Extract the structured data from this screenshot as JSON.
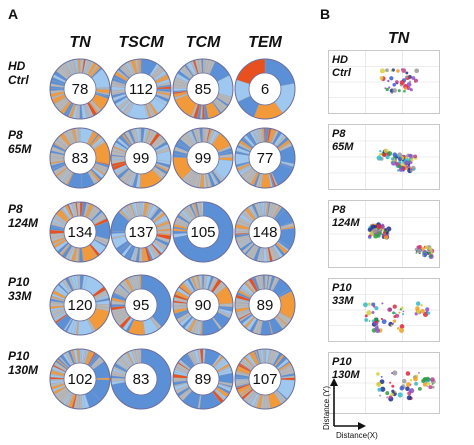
{
  "panel_a": {
    "letter": "A",
    "columns": [
      "TN",
      "TSCM",
      "TCM",
      "TEM"
    ],
    "rows": [
      {
        "label_line1": "HD",
        "label_line2": "Ctrl",
        "values": [
          "78",
          "112",
          "85",
          "6"
        ]
      },
      {
        "label_line1": "P8",
        "label_line2": "65M",
        "values": [
          "83",
          "99",
          "99",
          "77"
        ]
      },
      {
        "label_line1": "P8",
        "label_line2": "124M",
        "values": [
          "134",
          "137",
          "105",
          "148"
        ]
      },
      {
        "label_line1": "P10",
        "label_line2": "33M",
        "values": [
          "120",
          "95",
          "90",
          "89"
        ]
      },
      {
        "label_line1": "P10",
        "label_line2": "130M",
        "values": [
          "102",
          "83",
          "89",
          "107"
        ]
      }
    ]
  },
  "panel_b": {
    "letter": "B",
    "title": "TN",
    "plots": [
      {
        "label_line1": "HD",
        "label_line2": "Ctrl"
      },
      {
        "label_line1": "P8",
        "label_line2": "65M"
      },
      {
        "label_line1": "P8",
        "label_line2": "124M"
      },
      {
        "label_line1": "P10",
        "label_line2": "33M"
      },
      {
        "label_line1": "P10",
        "label_line2": "130M"
      }
    ],
    "y_axis_label": "Distance (Y)",
    "x_axis_label": "Distance(X)"
  },
  "colors": {
    "blue": "#5b8fd6",
    "light_blue": "#9ec8f0",
    "orange": "#f29a3a",
    "red_orange": "#e8501e",
    "gray": "#b8b8b8"
  }
}
